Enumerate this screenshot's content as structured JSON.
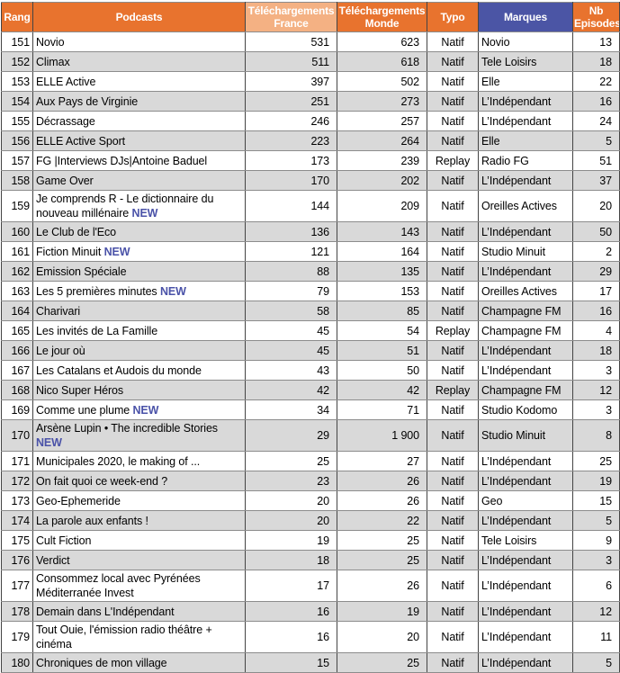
{
  "colors": {
    "header_orange": "#E8732E",
    "header_light_orange": "#F4B183",
    "header_blue": "#4B55A5",
    "row_stripe": "#D9D9D9",
    "new_label_color": "#4A52A8"
  },
  "table": {
    "new_label": "NEW",
    "headers": [
      {
        "id": "rang",
        "label": "Rang"
      },
      {
        "id": "podcasts",
        "label": "Podcasts"
      },
      {
        "id": "dl_france",
        "label": "Téléchargements France"
      },
      {
        "id": "dl_monde",
        "label": "Téléchargements Monde"
      },
      {
        "id": "typo",
        "label": "Typo"
      },
      {
        "id": "marques",
        "label": "Marques"
      },
      {
        "id": "nb_episodes",
        "label": "Nb Episodes"
      }
    ],
    "rows": [
      {
        "rang": "151",
        "podcast": "Novio",
        "new": false,
        "france": "531",
        "monde": "623",
        "typo": "Natif",
        "marque": "Novio",
        "episodes": "13"
      },
      {
        "rang": "152",
        "podcast": "Climax",
        "new": false,
        "france": "511",
        "monde": "618",
        "typo": "Natif",
        "marque": "Tele Loisirs",
        "episodes": "18"
      },
      {
        "rang": "153",
        "podcast": "ELLE Active",
        "new": false,
        "france": "397",
        "monde": "502",
        "typo": "Natif",
        "marque": "Elle",
        "episodes": "22"
      },
      {
        "rang": "154",
        "podcast": "Aux Pays de Virginie",
        "new": false,
        "france": "251",
        "monde": "273",
        "typo": "Natif",
        "marque": "L’Indépendant",
        "episodes": "16"
      },
      {
        "rang": "155",
        "podcast": "Décrassage",
        "new": false,
        "france": "246",
        "monde": "257",
        "typo": "Natif",
        "marque": "L’Indépendant",
        "episodes": "24"
      },
      {
        "rang": "156",
        "podcast": "ELLE Active Sport",
        "new": false,
        "france": "223",
        "monde": "264",
        "typo": "Natif",
        "marque": "Elle",
        "episodes": "5"
      },
      {
        "rang": "157",
        "podcast": "FG |Interviews DJs|Antoine Baduel",
        "new": false,
        "france": "173",
        "monde": "239",
        "typo": "Replay",
        "marque": "Radio FG",
        "episodes": "51"
      },
      {
        "rang": "158",
        "podcast": "Game Over",
        "new": false,
        "france": "170",
        "monde": "202",
        "typo": "Natif",
        "marque": "L’Indépendant",
        "episodes": "37"
      },
      {
        "rang": "159",
        "podcast": "Je comprends R - Le dictionnaire du nouveau millénaire",
        "new": true,
        "france": "144",
        "monde": "209",
        "typo": "Natif",
        "marque": "Oreilles Actives",
        "episodes": "20"
      },
      {
        "rang": "160",
        "podcast": "Le Club de l'Eco",
        "new": false,
        "france": "136",
        "monde": "143",
        "typo": "Natif",
        "marque": "L’Indépendant",
        "episodes": "50"
      },
      {
        "rang": "161",
        "podcast": "Fiction Minuit",
        "new": true,
        "france": "121",
        "monde": "164",
        "typo": "Natif",
        "marque": "Studio Minuit",
        "episodes": "2"
      },
      {
        "rang": "162",
        "podcast": "Emission Spéciale",
        "new": false,
        "france": "88",
        "monde": "135",
        "typo": "Natif",
        "marque": "L’Indépendant",
        "episodes": "29"
      },
      {
        "rang": "163",
        "podcast": "Les 5 premières minutes",
        "new": true,
        "france": "79",
        "monde": "153",
        "typo": "Natif",
        "marque": "Oreilles Actives",
        "episodes": "17"
      },
      {
        "rang": "164",
        "podcast": "Charivari",
        "new": false,
        "france": "58",
        "monde": "85",
        "typo": "Natif",
        "marque": "Champagne FM",
        "episodes": "16"
      },
      {
        "rang": "165",
        "podcast": "Les invités de La Famille",
        "new": false,
        "france": "45",
        "monde": "54",
        "typo": "Replay",
        "marque": "Champagne FM",
        "episodes": "4"
      },
      {
        "rang": "166",
        "podcast": "Le jour où",
        "new": false,
        "france": "45",
        "monde": "51",
        "typo": "Natif",
        "marque": "L’Indépendant",
        "episodes": "18"
      },
      {
        "rang": "167",
        "podcast": "Les Catalans et Audois du monde",
        "new": false,
        "france": "43",
        "monde": "50",
        "typo": "Natif",
        "marque": "L’Indépendant",
        "episodes": "3"
      },
      {
        "rang": "168",
        "podcast": "Nico Super Héros",
        "new": false,
        "france": "42",
        "monde": "42",
        "typo": "Replay",
        "marque": "Champagne FM",
        "episodes": "12"
      },
      {
        "rang": "169",
        "podcast": "Comme une plume",
        "new": true,
        "france": "34",
        "monde": "71",
        "typo": "Natif",
        "marque": "Studio Kodomo",
        "episodes": "3"
      },
      {
        "rang": "170",
        "podcast": "Arsène Lupin • The incredible Stories",
        "new": true,
        "france": "29",
        "monde": "1 900",
        "typo": "Natif",
        "marque": "Studio Minuit",
        "episodes": "8"
      },
      {
        "rang": "171",
        "podcast": "Municipales 2020, le making of ...",
        "new": false,
        "france": "25",
        "monde": "27",
        "typo": "Natif",
        "marque": "L’Indépendant",
        "episodes": "25"
      },
      {
        "rang": "172",
        "podcast": "On fait quoi ce week-end ?",
        "new": false,
        "france": "23",
        "monde": "26",
        "typo": "Natif",
        "marque": "L’Indépendant",
        "episodes": "19"
      },
      {
        "rang": "173",
        "podcast": "Geo-Ephemeride",
        "new": false,
        "france": "20",
        "monde": "26",
        "typo": "Natif",
        "marque": "Geo",
        "episodes": "15"
      },
      {
        "rang": "174",
        "podcast": "La parole aux enfants !",
        "new": false,
        "france": "20",
        "monde": "22",
        "typo": "Natif",
        "marque": "L’Indépendant",
        "episodes": "5"
      },
      {
        "rang": "175",
        "podcast": "Cult Fiction",
        "new": false,
        "france": "19",
        "monde": "25",
        "typo": "Natif",
        "marque": "Tele Loisirs",
        "episodes": "9"
      },
      {
        "rang": "176",
        "podcast": "Verdict",
        "new": false,
        "france": "18",
        "monde": "25",
        "typo": "Natif",
        "marque": "L’Indépendant",
        "episodes": "3"
      },
      {
        "rang": "177",
        "podcast": "Consommez local avec Pyrénées Méditerranée Invest",
        "new": false,
        "france": "17",
        "monde": "26",
        "typo": "Natif",
        "marque": "L’Indépendant",
        "episodes": "6"
      },
      {
        "rang": "178",
        "podcast": "Demain dans L'Indépendant",
        "new": false,
        "france": "16",
        "monde": "19",
        "typo": "Natif",
        "marque": "L’Indépendant",
        "episodes": "12"
      },
      {
        "rang": "179",
        "podcast": "Tout Ouie, l'émission radio théâtre + cinéma",
        "new": false,
        "france": "16",
        "monde": "20",
        "typo": "Natif",
        "marque": "L’Indépendant",
        "episodes": "11"
      },
      {
        "rang": "180",
        "podcast": "Chroniques de mon village",
        "new": false,
        "france": "15",
        "monde": "25",
        "typo": "Natif",
        "marque": "L’Indépendant",
        "episodes": "5"
      }
    ]
  }
}
